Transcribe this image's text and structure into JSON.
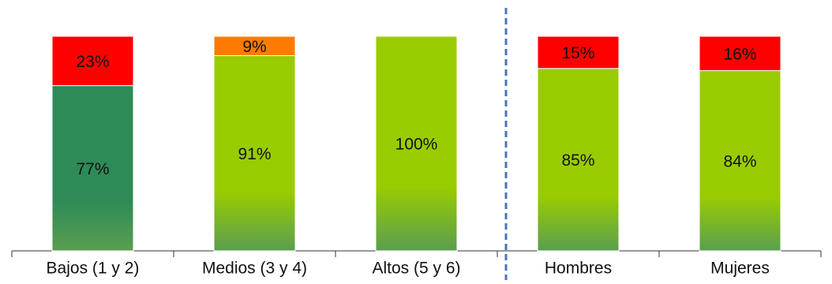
{
  "chart_data": {
    "type": "stacked_bar",
    "categories": [
      "Bajos (1 y 2)",
      "Medios (3 y 4)",
      "Altos (5 y 6)",
      "Hombres",
      "Mujeres"
    ],
    "ylim": [
      0,
      100
    ],
    "series": [
      {
        "colors": [
          "#2e8b57",
          "#99cc00",
          "#99cc00",
          "#99cc00",
          "#99cc00"
        ],
        "values": [
          77,
          91,
          100,
          85,
          84
        ],
        "value_labels": [
          "77%",
          "91%",
          "100%",
          "85%",
          "84%"
        ]
      },
      {
        "colors": [
          "#ff0000",
          "#ff7b00",
          null,
          "#ff0000",
          "#ff0000"
        ],
        "values": [
          23,
          9,
          null,
          15,
          16
        ],
        "value_labels": [
          "23%",
          "9%",
          null,
          "15%",
          "16%"
        ]
      }
    ]
  }
}
